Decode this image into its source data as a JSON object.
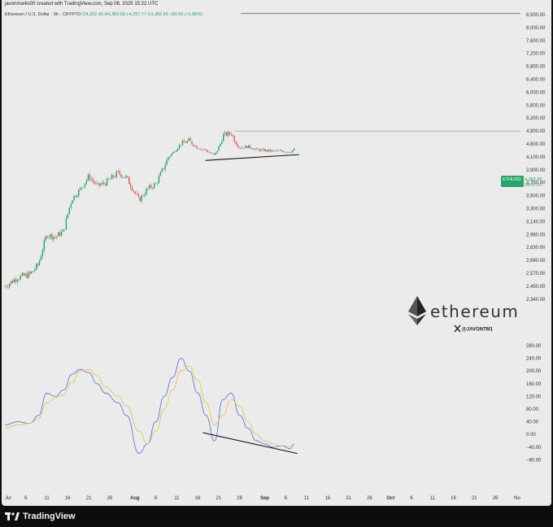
{
  "header": {
    "credit": "javonmarks00 created with TradingView.com, Sep 08, 2025 15:22 UTC"
  },
  "legend": {
    "symbol": "Ethereum / U.S. Dollar · 9h · CRYPTO",
    "open": "O4,302.40",
    "high": "H4,383.58",
    "low": "L4,297.77",
    "close": "C4,382.49",
    "change": "+80.09 (+1.86%)"
  },
  "price_tag": {
    "symbol": "ETHUSD",
    "price": "4,382.49",
    "countdown": "02:37:21",
    "color": "#2aa36b"
  },
  "watermark": {
    "brand": "ethereum",
    "handle": "@JAVONTM1"
  },
  "footer": {
    "brand": "TradingView"
  },
  "colors": {
    "background": "#ebebeb",
    "up_candle": "#2aa36b",
    "down_candle": "#e05a5a",
    "fast_line": "#6a74d8",
    "slow_line": "#e8c25a"
  },
  "chart_data": [
    {
      "type": "candlestick",
      "title": "",
      "price_axis_labels": [
        "8,500.00",
        "8,000.00",
        "7,600.00",
        "7,200.00",
        "6,800.00",
        "6,400.00",
        "6,000.00",
        "5,600.00",
        "5,200.00",
        "4,900.00",
        "4,600.00",
        "4,100.00",
        "3,900.00",
        "3,700.00",
        "3,500.00",
        "3,300.00",
        "3,140.00",
        "2,980.00",
        "2,830.00",
        "2,690.00",
        "2,570.00",
        "2,450.00",
        "2,340.00"
      ],
      "x_axis_labels": [
        "Jul",
        "6",
        "11",
        "16",
        "21",
        "26",
        "Aug",
        "6",
        "11",
        "16",
        "21",
        "26",
        "Sep",
        "6",
        "11",
        "16",
        "21",
        "26",
        "Oct",
        "6",
        "11",
        "16",
        "21",
        "26",
        "No"
      ],
      "close_path": [
        {
          "date": "2025-07-01",
          "price": 2450
        },
        {
          "date": "2025-07-04",
          "price": 2530
        },
        {
          "date": "2025-07-07",
          "price": 2560
        },
        {
          "date": "2025-07-09",
          "price": 2650
        },
        {
          "date": "2025-07-11",
          "price": 2980
        },
        {
          "date": "2025-07-13",
          "price": 2950
        },
        {
          "date": "2025-07-15",
          "price": 3020
        },
        {
          "date": "2025-07-17",
          "price": 3450
        },
        {
          "date": "2025-07-19",
          "price": 3600
        },
        {
          "date": "2025-07-21",
          "price": 3800
        },
        {
          "date": "2025-07-23",
          "price": 3650
        },
        {
          "date": "2025-07-25",
          "price": 3700
        },
        {
          "date": "2025-07-28",
          "price": 3850
        },
        {
          "date": "2025-07-30",
          "price": 3780
        },
        {
          "date": "2025-08-02",
          "price": 3430
        },
        {
          "date": "2025-08-04",
          "price": 3600
        },
        {
          "date": "2025-08-06",
          "price": 3680
        },
        {
          "date": "2025-08-08",
          "price": 3950
        },
        {
          "date": "2025-08-10",
          "price": 4250
        },
        {
          "date": "2025-08-12",
          "price": 4600
        },
        {
          "date": "2025-08-14",
          "price": 4680
        },
        {
          "date": "2025-08-16",
          "price": 4450
        },
        {
          "date": "2025-08-18",
          "price": 4350
        },
        {
          "date": "2025-08-20",
          "price": 4150
        },
        {
          "date": "2025-08-22",
          "price": 4800
        },
        {
          "date": "2025-08-24",
          "price": 4850
        },
        {
          "date": "2025-08-26",
          "price": 4450
        },
        {
          "date": "2025-08-28",
          "price": 4500
        },
        {
          "date": "2025-08-30",
          "price": 4380
        },
        {
          "date": "2025-09-01",
          "price": 4350
        },
        {
          "date": "2025-09-03",
          "price": 4320
        },
        {
          "date": "2025-09-05",
          "price": 4330
        },
        {
          "date": "2025-09-07",
          "price": 4300
        },
        {
          "date": "2025-09-08",
          "price": 4382
        }
      ],
      "horizontal_resistance": 4900,
      "support_trendline": [
        {
          "date": "2025-08-19",
          "price": 4070
        },
        {
          "date": "2025-09-08",
          "price": 4250
        }
      ]
    },
    {
      "type": "line",
      "title": "",
      "axis_labels": [
        "280.00",
        "240.00",
        "200.00",
        "160.00",
        "120.00",
        "80.00",
        "40.00",
        "0.00",
        "−40.00",
        "−80.00"
      ],
      "series": [
        {
          "values": [
            {
              "date": "2025-07-01",
              "value": 30
            },
            {
              "date": "2025-07-04",
              "value": 40
            },
            {
              "date": "2025-07-07",
              "value": 35
            },
            {
              "date": "2025-07-09",
              "value": 60
            },
            {
              "date": "2025-07-11",
              "value": 130
            },
            {
              "date": "2025-07-13",
              "value": 120
            },
            {
              "date": "2025-07-15",
              "value": 140
            },
            {
              "date": "2025-07-17",
              "value": 190
            },
            {
              "date": "2025-07-19",
              "value": 205
            },
            {
              "date": "2025-07-21",
              "value": 195
            },
            {
              "date": "2025-07-23",
              "value": 160
            },
            {
              "date": "2025-07-25",
              "value": 130
            },
            {
              "date": "2025-07-28",
              "value": 100
            },
            {
              "date": "2025-07-30",
              "value": 60
            },
            {
              "date": "2025-08-02",
              "value": -60
            },
            {
              "date": "2025-08-04",
              "value": -30
            },
            {
              "date": "2025-08-06",
              "value": 40
            },
            {
              "date": "2025-08-08",
              "value": 120
            },
            {
              "date": "2025-08-10",
              "value": 180
            },
            {
              "date": "2025-08-12",
              "value": 240
            },
            {
              "date": "2025-08-14",
              "value": 200
            },
            {
              "date": "2025-08-16",
              "value": 130
            },
            {
              "date": "2025-08-18",
              "value": 60
            },
            {
              "date": "2025-08-20",
              "value": -20
            },
            {
              "date": "2025-08-22",
              "value": 110
            },
            {
              "date": "2025-08-24",
              "value": 130
            },
            {
              "date": "2025-08-26",
              "value": 60
            },
            {
              "date": "2025-08-28",
              "value": 20
            },
            {
              "date": "2025-08-30",
              "value": -20
            },
            {
              "date": "2025-09-01",
              "value": -30
            },
            {
              "date": "2025-09-03",
              "value": -40
            },
            {
              "date": "2025-09-05",
              "value": -35
            },
            {
              "date": "2025-09-07",
              "value": -45
            },
            {
              "date": "2025-09-08",
              "value": -30
            }
          ]
        },
        {
          "values": [
            {
              "date": "2025-07-01",
              "value": 20
            },
            {
              "date": "2025-07-04",
              "value": 30
            },
            {
              "date": "2025-07-07",
              "value": 35
            },
            {
              "date": "2025-07-09",
              "value": 50
            },
            {
              "date": "2025-07-11",
              "value": 100
            },
            {
              "date": "2025-07-13",
              "value": 115
            },
            {
              "date": "2025-07-15",
              "value": 125
            },
            {
              "date": "2025-07-17",
              "value": 165
            },
            {
              "date": "2025-07-19",
              "value": 200
            },
            {
              "date": "2025-07-21",
              "value": 205
            },
            {
              "date": "2025-07-23",
              "value": 185
            },
            {
              "date": "2025-07-25",
              "value": 150
            },
            {
              "date": "2025-07-28",
              "value": 120
            },
            {
              "date": "2025-07-30",
              "value": 90
            },
            {
              "date": "2025-08-02",
              "value": 10
            },
            {
              "date": "2025-08-04",
              "value": -30
            },
            {
              "date": "2025-08-06",
              "value": 10
            },
            {
              "date": "2025-08-08",
              "value": 80
            },
            {
              "date": "2025-08-10",
              "value": 140
            },
            {
              "date": "2025-08-12",
              "value": 200
            },
            {
              "date": "2025-08-14",
              "value": 215
            },
            {
              "date": "2025-08-16",
              "value": 170
            },
            {
              "date": "2025-08-18",
              "value": 100
            },
            {
              "date": "2025-08-20",
              "value": 30
            },
            {
              "date": "2025-08-22",
              "value": 60
            },
            {
              "date": "2025-08-24",
              "value": 110
            },
            {
              "date": "2025-08-26",
              "value": 90
            },
            {
              "date": "2025-08-28",
              "value": 40
            },
            {
              "date": "2025-08-30",
              "value": 0
            },
            {
              "date": "2025-09-01",
              "value": -20
            },
            {
              "date": "2025-09-03",
              "value": -30
            },
            {
              "date": "2025-09-05",
              "value": -35
            },
            {
              "date": "2025-09-07",
              "value": -38
            },
            {
              "date": "2025-09-08",
              "value": -35
            }
          ]
        }
      ],
      "trendline": [
        {
          "date": "2025-08-18",
          "value": -20
        },
        {
          "date": "2025-09-08",
          "value": -60
        }
      ]
    }
  ]
}
